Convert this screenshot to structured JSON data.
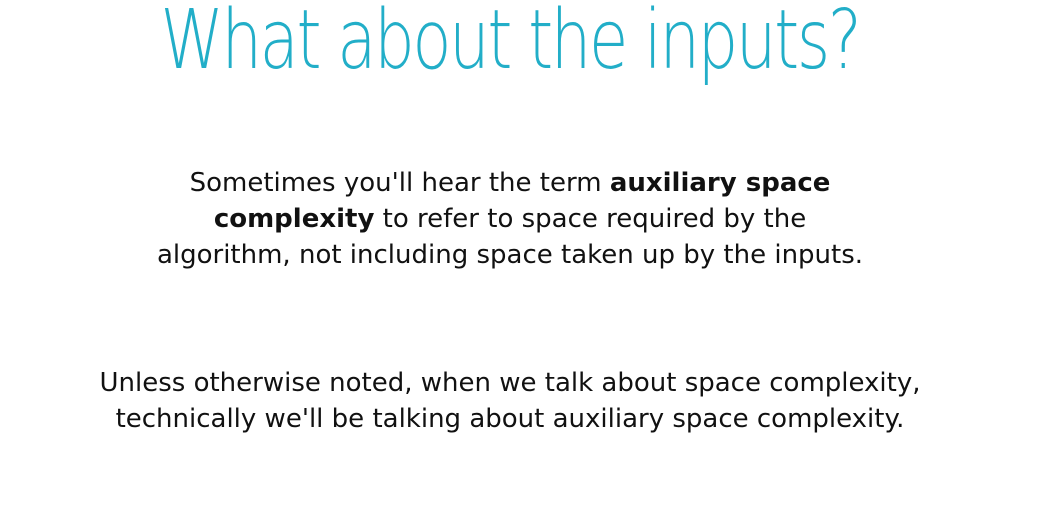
{
  "slide": {
    "title": "What about the inputs?",
    "title_color": "#22aec8",
    "paragraph1": {
      "line1_prefix": "Sometimes you'll hear the term ",
      "line1_bold": "auxiliary space",
      "line2_bold": "complexity",
      "line2_suffix": " to refer to space required by the",
      "line3": "algorithm, not including space taken up by the inputs."
    },
    "paragraph2": {
      "line1": "Unless otherwise noted, when we talk about space complexity,",
      "line2": "technically we'll be talking about auxiliary space complexity."
    }
  }
}
